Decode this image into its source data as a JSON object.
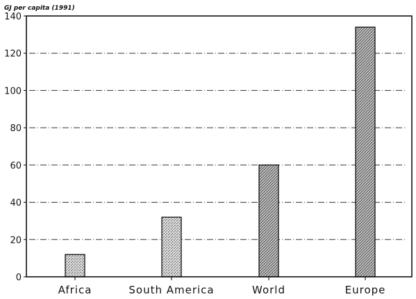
{
  "chart_data": {
    "type": "bar",
    "title": "",
    "ylabel": "GJ per capita (1991)",
    "xlabel": "",
    "categories": [
      "Africa",
      "South America",
      "World",
      "Europe"
    ],
    "values": [
      12,
      32,
      60,
      134
    ],
    "ylim": [
      0,
      140
    ],
    "yticks": [
      0,
      20,
      40,
      60,
      80,
      100,
      120,
      140
    ],
    "grid": true,
    "legend": "none"
  }
}
